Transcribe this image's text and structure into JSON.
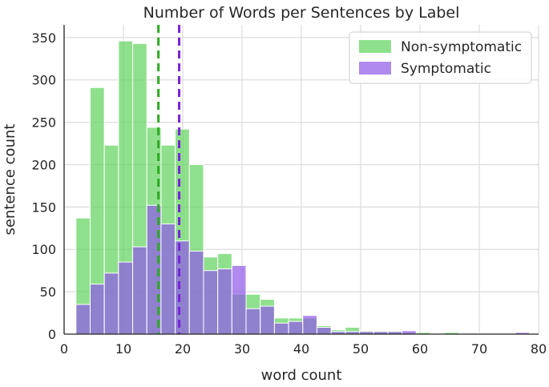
{
  "chart_data": {
    "type": "histogram",
    "title": "Number of Words per Sentences by Label",
    "xlabel": "word count",
    "ylabel": "sentence count",
    "xlim": [
      0,
      80
    ],
    "ylim": [
      0,
      365
    ],
    "xticks": [
      0,
      10,
      20,
      30,
      40,
      50,
      60,
      70,
      80
    ],
    "yticks": [
      0,
      50,
      100,
      150,
      200,
      250,
      300,
      350
    ],
    "grid": true,
    "legend_position": "top-right",
    "series": [
      {
        "name": "Non-symptomatic",
        "color": "#5fd35b",
        "bins": [
          {
            "x0": 2.0,
            "x1": 4.39,
            "value": 137
          },
          {
            "x0": 4.39,
            "x1": 6.78,
            "value": 291
          },
          {
            "x0": 6.78,
            "x1": 9.17,
            "value": 223
          },
          {
            "x0": 9.17,
            "x1": 11.56,
            "value": 346
          },
          {
            "x0": 11.56,
            "x1": 13.95,
            "value": 343
          },
          {
            "x0": 13.95,
            "x1": 16.34,
            "value": 244
          },
          {
            "x0": 16.34,
            "x1": 18.73,
            "value": 223
          },
          {
            "x0": 18.73,
            "x1": 21.12,
            "value": 242
          },
          {
            "x0": 21.12,
            "x1": 23.51,
            "value": 200
          },
          {
            "x0": 23.51,
            "x1": 25.9,
            "value": 91
          },
          {
            "x0": 25.9,
            "x1": 28.29,
            "value": 95
          },
          {
            "x0": 28.29,
            "x1": 30.68,
            "value": 47
          },
          {
            "x0": 30.68,
            "x1": 33.07,
            "value": 47
          },
          {
            "x0": 33.07,
            "x1": 35.46,
            "value": 41
          },
          {
            "x0": 35.46,
            "x1": 37.85,
            "value": 19
          },
          {
            "x0": 37.85,
            "x1": 40.24,
            "value": 19
          },
          {
            "x0": 40.24,
            "x1": 42.63,
            "value": 19
          },
          {
            "x0": 42.63,
            "x1": 45.02,
            "value": 10
          },
          {
            "x0": 45.02,
            "x1": 47.41,
            "value": 5
          },
          {
            "x0": 47.41,
            "x1": 49.8,
            "value": 8
          },
          {
            "x0": 49.8,
            "x1": 52.19,
            "value": 4
          },
          {
            "x0": 52.19,
            "x1": 54.58,
            "value": 3
          },
          {
            "x0": 54.58,
            "x1": 56.97,
            "value": 3
          },
          {
            "x0": 56.97,
            "x1": 59.36,
            "value": 2
          },
          {
            "x0": 59.36,
            "x1": 61.75,
            "value": 2
          },
          {
            "x0": 61.75,
            "x1": 64.14,
            "value": 1
          },
          {
            "x0": 64.14,
            "x1": 66.53,
            "value": 2
          },
          {
            "x0": 66.53,
            "x1": 68.92,
            "value": 0
          },
          {
            "x0": 68.92,
            "x1": 71.31,
            "value": 1
          },
          {
            "x0": 71.31,
            "x1": 73.7,
            "value": 0
          },
          {
            "x0": 73.7,
            "x1": 76.09,
            "value": 0
          },
          {
            "x0": 76.09,
            "x1": 78.48,
            "value": 1
          }
        ]
      },
      {
        "name": "Symptomatic",
        "color": "#8e58e8",
        "bins": [
          {
            "x0": 2.0,
            "x1": 4.39,
            "value": 35
          },
          {
            "x0": 4.39,
            "x1": 6.78,
            "value": 59
          },
          {
            "x0": 6.78,
            "x1": 9.17,
            "value": 72
          },
          {
            "x0": 9.17,
            "x1": 11.56,
            "value": 85
          },
          {
            "x0": 11.56,
            "x1": 13.95,
            "value": 103
          },
          {
            "x0": 13.95,
            "x1": 16.34,
            "value": 152
          },
          {
            "x0": 16.34,
            "x1": 18.73,
            "value": 130
          },
          {
            "x0": 18.73,
            "x1": 21.12,
            "value": 110
          },
          {
            "x0": 21.12,
            "x1": 23.51,
            "value": 98
          },
          {
            "x0": 23.51,
            "x1": 25.9,
            "value": 75
          },
          {
            "x0": 25.9,
            "x1": 28.29,
            "value": 77
          },
          {
            "x0": 28.29,
            "x1": 30.68,
            "value": 81
          },
          {
            "x0": 30.68,
            "x1": 33.07,
            "value": 30
          },
          {
            "x0": 33.07,
            "x1": 35.46,
            "value": 33
          },
          {
            "x0": 35.46,
            "x1": 37.85,
            "value": 13
          },
          {
            "x0": 37.85,
            "x1": 40.24,
            "value": 15
          },
          {
            "x0": 40.24,
            "x1": 42.63,
            "value": 22
          },
          {
            "x0": 42.63,
            "x1": 45.02,
            "value": 8
          },
          {
            "x0": 45.02,
            "x1": 47.41,
            "value": 3
          },
          {
            "x0": 47.41,
            "x1": 49.8,
            "value": 3
          },
          {
            "x0": 49.8,
            "x1": 52.19,
            "value": 3
          },
          {
            "x0": 52.19,
            "x1": 54.58,
            "value": 3
          },
          {
            "x0": 54.58,
            "x1": 56.97,
            "value": 3
          },
          {
            "x0": 56.97,
            "x1": 59.36,
            "value": 4
          },
          {
            "x0": 59.36,
            "x1": 61.75,
            "value": 0
          },
          {
            "x0": 61.75,
            "x1": 64.14,
            "value": 0
          },
          {
            "x0": 64.14,
            "x1": 66.53,
            "value": 0
          },
          {
            "x0": 66.53,
            "x1": 68.92,
            "value": 0
          },
          {
            "x0": 68.92,
            "x1": 71.31,
            "value": 0
          },
          {
            "x0": 71.31,
            "x1": 73.7,
            "value": 0
          },
          {
            "x0": 73.7,
            "x1": 76.09,
            "value": 0
          },
          {
            "x0": 76.09,
            "x1": 78.48,
            "value": 2
          }
        ]
      }
    ],
    "mean_lines": [
      {
        "series": "Non-symptomatic",
        "x": 15.9,
        "color": "#2eaa21",
        "style": "dashed"
      },
      {
        "series": "Symptomatic",
        "x": 19.4,
        "color": "#7a22d8",
        "style": "dashed"
      }
    ]
  }
}
